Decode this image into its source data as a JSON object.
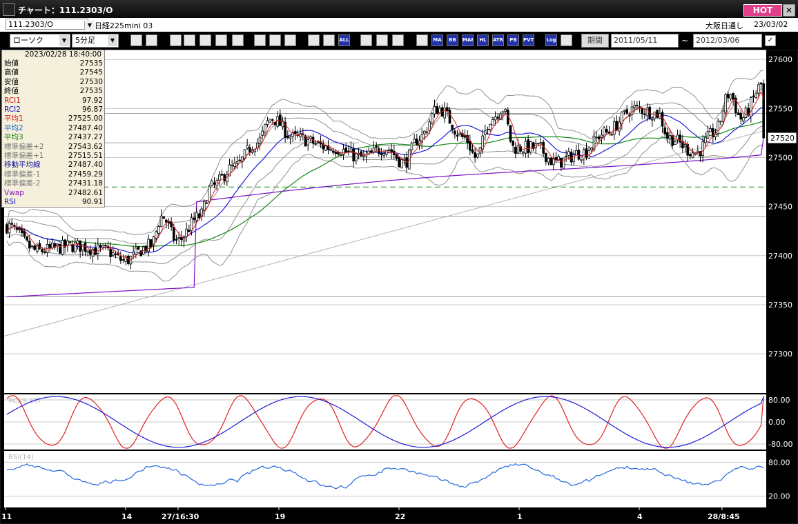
{
  "window": {
    "title": "チャート：111.2303/O",
    "hot_label": "HOT",
    "close_label": "✕"
  },
  "instrument": {
    "code": "111.2303/O",
    "name": "日経225mini 03",
    "session": "大阪日通し",
    "date": "23/03/02"
  },
  "toolbar": {
    "chart_type": "ローソク",
    "interval": "5分足",
    "period_label": "期間",
    "date_from": "2011/05/11",
    "date_to": "2012/03/06",
    "tilde": "~",
    "check": "✓",
    "buttons": [
      {
        "icon": "zoom-icon",
        "text": ""
      },
      {
        "icon": "ruler-icon",
        "text": ""
      },
      {
        "icon": "download-icon",
        "text": ""
      },
      {
        "icon": "search-chart-icon",
        "text": ""
      },
      {
        "icon": "bar-chart-icon",
        "text": ""
      },
      {
        "icon": "compare-icon",
        "text": ""
      },
      {
        "icon": "alert-icon",
        "text": ""
      },
      {
        "icon": "pencil-icon",
        "text": ""
      },
      {
        "icon": "cursor-icon",
        "text": ""
      },
      {
        "icon": "undo-icon",
        "text": ""
      },
      {
        "icon": "candle-left-icon",
        "text": ""
      },
      {
        "icon": "candle-right-icon",
        "text": ""
      },
      {
        "icon": "all-icon",
        "text": "ALL"
      },
      {
        "icon": "gear-icon",
        "text": ""
      },
      {
        "icon": "wrench-icon",
        "text": ""
      },
      {
        "icon": "palette-icon",
        "text": ""
      },
      {
        "icon": "grid-icon",
        "text": ""
      },
      {
        "icon": "ma-icon",
        "text": "MA"
      },
      {
        "icon": "bb-icon",
        "text": "BB"
      },
      {
        "icon": "mae-icon",
        "text": "MAE"
      },
      {
        "icon": "hl-icon",
        "text": "HL"
      },
      {
        "icon": "atr-icon",
        "text": "ATR"
      },
      {
        "icon": "pb-icon",
        "text": "PB"
      },
      {
        "icon": "pvt-icon",
        "text": "PVT"
      },
      {
        "icon": "log-icon",
        "text": "Log"
      },
      {
        "icon": "layout-icon",
        "text": ""
      }
    ]
  },
  "colors": {
    "candle": "#000000",
    "ma1": "#e02020",
    "ma2": "#1a1ad6",
    "ma3": "#118811",
    "band": "#909090",
    "vwap": "#7a10c8",
    "rci1": "#e02020",
    "rci2": "#1a1ad6",
    "rsi": "#2266dd",
    "hline": "#118811"
  },
  "info_panel": {
    "datetime": "2023/02/28  18:40:00",
    "rows": [
      {
        "label": "始値",
        "value": "27535",
        "color": "#000000"
      },
      {
        "label": "高値",
        "value": "27545",
        "color": "#000000"
      },
      {
        "label": "安値",
        "value": "27530",
        "color": "#000000"
      },
      {
        "label": "終値",
        "value": "27535",
        "color": "#000000"
      },
      {
        "label": "RCI1",
        "value": "97.92",
        "color": "#d01010"
      },
      {
        "label": "RCI2",
        "value": "96.87",
        "color": "#1010c0"
      },
      {
        "label": "平均1",
        "value": "27525.00",
        "color": "#d01010"
      },
      {
        "label": "平均2",
        "value": "27487.40",
        "color": "#1060d0"
      },
      {
        "label": "平均3",
        "value": "27437.27",
        "color": "#108010"
      },
      {
        "label": "標準偏差+2",
        "value": "27543.62",
        "color": "#777777"
      },
      {
        "label": "標準偏差+1",
        "value": "27515.51",
        "color": "#777777"
      },
      {
        "label": "移動平均線",
        "value": "27487.40",
        "color": "#1010a0"
      },
      {
        "label": "標準偏差-1",
        "value": "27459.29",
        "color": "#777777"
      },
      {
        "label": "標準偏差-2",
        "value": "27431.18",
        "color": "#777777"
      },
      {
        "label": "Vwap",
        "value": "27482.61",
        "color": "#8010c0"
      },
      {
        "label": "RSI",
        "value": "90.91",
        "color": "#1010c0"
      }
    ]
  },
  "chart_data": [
    {
      "type": "candlestick",
      "ylim": [
        27260,
        27610
      ],
      "yticks": [
        27300,
        27350,
        27400,
        27450,
        27500,
        27550,
        27600
      ],
      "last_price": "27520",
      "last_value": 27520,
      "horizontal_line": 27470,
      "xticks": [
        "11",
        "14",
        "27/16:30",
        "19",
        "22",
        "1",
        "4",
        "28/8:45"
      ],
      "anchors": [
        {
          "t": 0,
          "p": 27430
        },
        {
          "t": 0.04,
          "p": 27405
        },
        {
          "t": 0.09,
          "p": 27410
        },
        {
          "t": 0.13,
          "p": 27405
        },
        {
          "t": 0.155,
          "p": 27395
        },
        {
          "t": 0.19,
          "p": 27410
        },
        {
          "t": 0.205,
          "p": 27440
        },
        {
          "t": 0.225,
          "p": 27415
        },
        {
          "t": 0.255,
          "p": 27440
        },
        {
          "t": 0.27,
          "p": 27470
        },
        {
          "t": 0.3,
          "p": 27490
        },
        {
          "t": 0.33,
          "p": 27515
        },
        {
          "t": 0.35,
          "p": 27540
        },
        {
          "t": 0.38,
          "p": 27520
        },
        {
          "t": 0.43,
          "p": 27510
        },
        {
          "t": 0.47,
          "p": 27500
        },
        {
          "t": 0.5,
          "p": 27510
        },
        {
          "t": 0.525,
          "p": 27495
        },
        {
          "t": 0.545,
          "p": 27520
        },
        {
          "t": 0.57,
          "p": 27550
        },
        {
          "t": 0.605,
          "p": 27520
        },
        {
          "t": 0.62,
          "p": 27500
        },
        {
          "t": 0.64,
          "p": 27540
        },
        {
          "t": 0.655,
          "p": 27550
        },
        {
          "t": 0.67,
          "p": 27510
        },
        {
          "t": 0.7,
          "p": 27510
        },
        {
          "t": 0.725,
          "p": 27495
        },
        {
          "t": 0.76,
          "p": 27505
        },
        {
          "t": 0.79,
          "p": 27525
        },
        {
          "t": 0.83,
          "p": 27550
        },
        {
          "t": 0.86,
          "p": 27545
        },
        {
          "t": 0.875,
          "p": 27520
        },
        {
          "t": 0.91,
          "p": 27505
        },
        {
          "t": 0.935,
          "p": 27525
        },
        {
          "t": 0.955,
          "p": 27565
        },
        {
          "t": 0.97,
          "p": 27540
        },
        {
          "t": 1.0,
          "p": 27575
        }
      ],
      "ma1_value": 27525.0,
      "ma2_value": 27487.4,
      "ma3_value": 27437.27,
      "bb_plus2": 27543.62,
      "bb_minus2": 27431.18,
      "vwap_value": 27482.61
    },
    {
      "type": "line",
      "title": "RCI(9,26)",
      "ylim": [
        -100,
        100
      ],
      "yticks": [
        -80,
        0,
        80
      ],
      "ytick_labels": [
        "-80.00",
        "0.00",
        "80.00"
      ],
      "series": [
        {
          "name": "RCI1",
          "value": 97.92
        },
        {
          "name": "RCI2",
          "value": 96.87
        }
      ]
    },
    {
      "type": "line",
      "title": "RSI(14)",
      "ylim": [
        0,
        100
      ],
      "yticks": [
        20,
        80
      ],
      "ytick_labels": [
        "20.00",
        "80.00"
      ],
      "series": [
        {
          "name": "RSI",
          "value": 90.91
        }
      ]
    }
  ]
}
